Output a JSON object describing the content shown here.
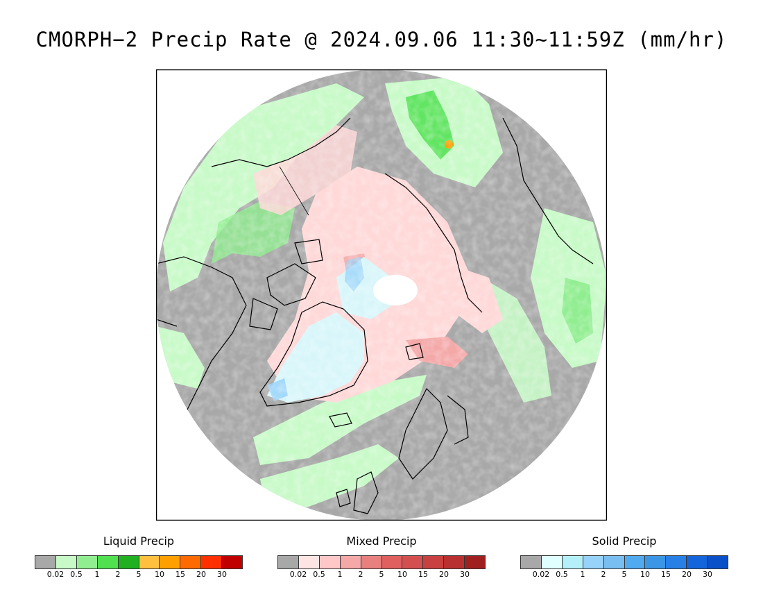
{
  "title": "CMORPH−2 Precip Rate @ 2024.09.06 11:30~11:59Z (mm/hr)",
  "legends": [
    {
      "title": "Liquid Precip",
      "colors": [
        "#a8a8a8",
        "#c8fac8",
        "#90ee90",
        "#50e050",
        "#20b020",
        "#ffc040",
        "#ffa000",
        "#ff6a00",
        "#ff3000",
        "#c00000"
      ],
      "ticks": [
        "0.02",
        "0.5",
        "1",
        "2",
        "5",
        "10",
        "15",
        "20",
        "30"
      ]
    },
    {
      "title": "Mixed Precip",
      "colors": [
        "#a8a8a8",
        "#ffe4e4",
        "#ffc8c8",
        "#f4a8a8",
        "#e88080",
        "#e06060",
        "#d45050",
        "#c84040",
        "#b83030",
        "#a02020"
      ],
      "ticks": [
        "0.02",
        "0.5",
        "1",
        "2",
        "5",
        "10",
        "15",
        "20",
        "30"
      ]
    },
    {
      "title": "Solid Precip",
      "colors": [
        "#a8a8a8",
        "#e0ffff",
        "#b4f0fa",
        "#96d2fa",
        "#78bef0",
        "#50aaf0",
        "#3c96e6",
        "#2880e6",
        "#1464dc",
        "#0a50c8"
      ],
      "ticks": [
        "0.02",
        "0.5",
        "1",
        "2",
        "5",
        "10",
        "15",
        "20",
        "30"
      ]
    }
  ],
  "map_colors": {
    "no_precip": "#a8a8a8",
    "liquid_light": "#c8fac8",
    "liquid_mid": "#90ee90",
    "liquid_heavy": "#50e050",
    "mixed_light": "#ffd8d8",
    "mixed_mid": "#f4a8a8",
    "solid_light": "#d8f6fa",
    "solid_mid": "#96d2fa",
    "coastline": "#000000",
    "pole_gap": "#ffffff"
  }
}
